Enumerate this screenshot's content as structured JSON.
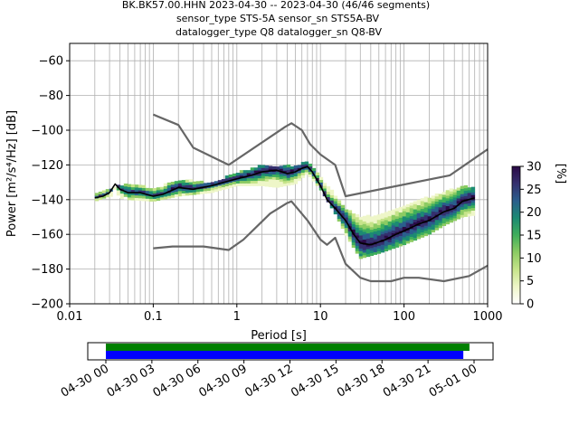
{
  "header": {
    "line1": "BK.BK57.00.HHN   2023-04-30 -- 2023-04-30  (46/46 segments)",
    "line2": "sensor_type STS-5A sensor_sn STS5A-BV",
    "line3": "datalogger_type Q8 datalogger_sn Q8-BV"
  },
  "colors": {
    "mean_curve": "#000000",
    "noise_models": "#666666",
    "grid": "#b0b0b0",
    "coverage_top": "#008000",
    "coverage_bottom": "#0000ff",
    "colormap": [
      "#ffffff",
      "#eef6c8",
      "#c6e48a",
      "#8ccb63",
      "#3fae5b",
      "#1c8a73",
      "#2a5e8c",
      "#35306e",
      "#2a0a45"
    ]
  },
  "chart_data": [
    {
      "type": "heatmap",
      "xlabel": "Period [s]",
      "ylabel": "Power [m²/s⁴/Hz] [dB]",
      "x_scale": "log",
      "xlim": [
        0.01,
        1000
      ],
      "ylim": [
        -200,
        -50
      ],
      "x_tick_labels": [
        "0.01",
        "0.1",
        "1",
        "10",
        "100",
        "1000"
      ],
      "y_ticks": [
        -60,
        -80,
        -100,
        -120,
        -140,
        -160,
        -180,
        -200
      ],
      "grid": true,
      "colorbar": {
        "label": "[%]",
        "range": [
          0,
          30
        ],
        "ticks": [
          0,
          5,
          10,
          15,
          20,
          25,
          30
        ]
      },
      "series": [
        {
          "role": "mean",
          "points": [
            [
              0.02,
              -139
            ],
            [
              0.025,
              -138
            ],
            [
              0.03,
              -136
            ],
            [
              0.035,
              -131
            ],
            [
              0.04,
              -134
            ],
            [
              0.05,
              -136
            ],
            [
              0.07,
              -136
            ],
            [
              0.1,
              -138
            ],
            [
              0.13,
              -137
            ],
            [
              0.2,
              -133
            ],
            [
              0.3,
              -134
            ],
            [
              0.5,
              -132
            ],
            [
              0.7,
              -130
            ],
            [
              1,
              -128
            ],
            [
              1.5,
              -126
            ],
            [
              2,
              -124
            ],
            [
              3,
              -123
            ],
            [
              4,
              -125
            ],
            [
              5,
              -124
            ],
            [
              6,
              -122
            ],
            [
              7,
              -121
            ],
            [
              8,
              -124
            ],
            [
              10,
              -132
            ],
            [
              12,
              -140
            ],
            [
              15,
              -145
            ],
            [
              20,
              -152
            ],
            [
              25,
              -160
            ],
            [
              30,
              -165
            ],
            [
              40,
              -166
            ],
            [
              60,
              -163
            ],
            [
              80,
              -160
            ],
            [
              100,
              -158
            ],
            [
              150,
              -154
            ],
            [
              200,
              -152
            ],
            [
              300,
              -147
            ],
            [
              400,
              -145
            ],
            [
              500,
              -141
            ],
            [
              700,
              -139
            ]
          ]
        },
        {
          "role": "upper_model",
          "points": [
            [
              0.1,
              -91
            ],
            [
              0.2,
              -97
            ],
            [
              0.3,
              -110
            ],
            [
              0.8,
              -120
            ],
            [
              3.8,
              -98
            ],
            [
              4.5,
              -96
            ],
            [
              6,
              -100
            ],
            [
              7.5,
              -108
            ],
            [
              10,
              -114
            ],
            [
              15,
              -120
            ],
            [
              20,
              -138
            ],
            [
              354,
              -126
            ],
            [
              1000,
              -111
            ]
          ]
        },
        {
          "role": "lower_model",
          "points": [
            [
              0.1,
              -168
            ],
            [
              0.17,
              -167
            ],
            [
              0.4,
              -167
            ],
            [
              0.8,
              -169
            ],
            [
              1.2,
              -163
            ],
            [
              2.5,
              -148
            ],
            [
              4,
              -142
            ],
            [
              4.5,
              -141
            ],
            [
              7,
              -152
            ],
            [
              10,
              -163
            ],
            [
              12,
              -166
            ],
            [
              15,
              -162
            ],
            [
              20,
              -177
            ],
            [
              30,
              -185
            ],
            [
              40,
              -187
            ],
            [
              70,
              -187
            ],
            [
              100,
              -185
            ],
            [
              150,
              -185
            ],
            [
              300,
              -187
            ],
            [
              600,
              -184
            ],
            [
              1000,
              -178
            ]
          ]
        }
      ],
      "density_band": {
        "lower": [
          [
            0.02,
            -141
          ],
          [
            0.03,
            -138
          ],
          [
            0.05,
            -140
          ],
          [
            0.1,
            -141
          ],
          [
            0.2,
            -138
          ],
          [
            0.5,
            -136
          ],
          [
            1,
            -132
          ],
          [
            2,
            -132
          ],
          [
            3,
            -133
          ],
          [
            5,
            -131
          ],
          [
            7,
            -125
          ],
          [
            10,
            -134
          ],
          [
            15,
            -148
          ],
          [
            20,
            -160
          ],
          [
            30,
            -174
          ],
          [
            50,
            -171
          ],
          [
            100,
            -166
          ],
          [
            200,
            -160
          ],
          [
            300,
            -155
          ],
          [
            500,
            -150
          ],
          [
            700,
            -149
          ]
        ],
        "upper": [
          [
            0.02,
            -137
          ],
          [
            0.03,
            -134
          ],
          [
            0.05,
            -131
          ],
          [
            0.1,
            -134
          ],
          [
            0.2,
            -129
          ],
          [
            0.5,
            -131
          ],
          [
            1,
            -125
          ],
          [
            2,
            -121
          ],
          [
            3,
            -121
          ],
          [
            5,
            -121
          ],
          [
            7,
            -119
          ],
          [
            10,
            -128
          ],
          [
            15,
            -138
          ],
          [
            20,
            -146
          ],
          [
            30,
            -151
          ],
          [
            50,
            -149
          ],
          [
            100,
            -144
          ],
          [
            200,
            -139
          ],
          [
            300,
            -136
          ],
          [
            500,
            -133
          ],
          [
            700,
            -133
          ]
        ]
      }
    },
    {
      "type": "bar",
      "title": "",
      "tick_labels": [
        "04-30 00",
        "04-30 03",
        "04-30 06",
        "04-30 09",
        "04-30 12",
        "04-30 15",
        "04-30 18",
        "04-30 21",
        "05-01 00"
      ],
      "series": [
        {
          "role": "data_coverage",
          "start_h": 0,
          "end_h": 23.7
        },
        {
          "role": "psd_coverage",
          "start_h": 0,
          "end_h": 23.3
        }
      ]
    }
  ]
}
